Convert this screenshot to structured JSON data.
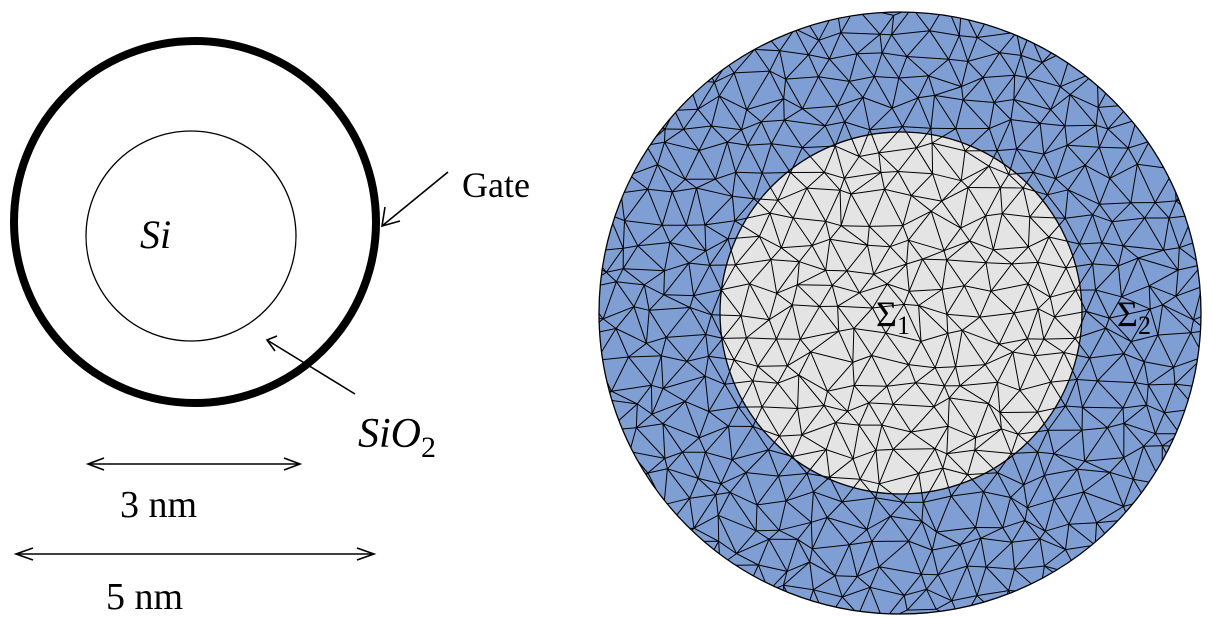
{
  "schematic": {
    "core_label": "Si",
    "oxide_label_base": "SiO",
    "oxide_label_sub": "2",
    "gate_label": "Gate",
    "inner_dimension_label": "3 nm",
    "outer_dimension_label": "5 nm"
  },
  "mesh": {
    "inner_region_label_base": "Σ",
    "inner_region_label_sub": "1",
    "outer_region_label_base": "Σ",
    "outer_region_label_sub": "2"
  },
  "colors": {
    "outer_region_fill": "#7f9ed3",
    "inner_region_fill": "#e4e4e4",
    "mesh_line": "#000000",
    "gate_ring": "#000000"
  }
}
